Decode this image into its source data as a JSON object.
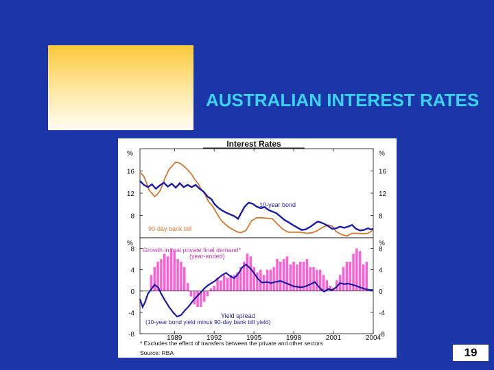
{
  "slide": {
    "title": "AUSTRALIAN INTEREST RATES",
    "number": "19",
    "colors": {
      "background": "#1a36a8",
      "title": "#39d3f0",
      "accent_top": "#ffc83a",
      "accent_bottom": "#fffdf3"
    }
  },
  "chart_data": [
    {
      "type": "line",
      "title": "Interest Rates",
      "ylabel_left": "%",
      "ylabel_right": "%",
      "ylim": [
        4,
        20
      ],
      "yticks": [
        8,
        12,
        16
      ],
      "xlim": [
        1986.4,
        2004
      ],
      "series": [
        {
          "name": "10-year bond",
          "color": "#1a1aa8",
          "points": [
            [
              1986.4,
              14.2
            ],
            [
              1986.7,
              13.5
            ],
            [
              1987.0,
              13.1
            ],
            [
              1987.3,
              13.6
            ],
            [
              1987.6,
              12.8
            ],
            [
              1987.9,
              13.4
            ],
            [
              1988.2,
              13.9
            ],
            [
              1988.5,
              13.2
            ],
            [
              1988.8,
              13.7
            ],
            [
              1989.1,
              13.0
            ],
            [
              1989.4,
              13.8
            ],
            [
              1989.7,
              13.1
            ],
            [
              1990.0,
              13.5
            ],
            [
              1990.3,
              13.1
            ],
            [
              1990.6,
              13.5
            ],
            [
              1990.9,
              12.8
            ],
            [
              1991.2,
              12.3
            ],
            [
              1991.5,
              11.4
            ],
            [
              1991.8,
              10.9
            ],
            [
              1992.0,
              10.1
            ],
            [
              1992.3,
              9.4
            ],
            [
              1992.6,
              8.9
            ],
            [
              1992.9,
              8.5
            ],
            [
              1993.2,
              8.2
            ],
            [
              1993.5,
              7.9
            ],
            [
              1993.8,
              7.4
            ],
            [
              1994.0,
              8.3
            ],
            [
              1994.3,
              9.6
            ],
            [
              1994.6,
              10.3
            ],
            [
              1994.9,
              10.1
            ],
            [
              1995.2,
              9.6
            ],
            [
              1995.5,
              9.3
            ],
            [
              1995.8,
              9.5
            ],
            [
              1996.1,
              9.0
            ],
            [
              1996.4,
              8.7
            ],
            [
              1996.7,
              8.4
            ],
            [
              1997.0,
              7.8
            ],
            [
              1997.3,
              7.2
            ],
            [
              1997.6,
              6.8
            ],
            [
              1998.0,
              6.2
            ],
            [
              1998.3,
              5.8
            ],
            [
              1998.6,
              5.4
            ],
            [
              1998.9,
              5.5
            ],
            [
              1999.2,
              5.9
            ],
            [
              1999.5,
              6.4
            ],
            [
              1999.8,
              6.9
            ],
            [
              2000.0,
              6.8
            ],
            [
              2000.3,
              6.5
            ],
            [
              2000.6,
              6.1
            ],
            [
              2000.9,
              5.6
            ],
            [
              2001.2,
              5.7
            ],
            [
              2001.5,
              6.0
            ],
            [
              2001.8,
              5.8
            ],
            [
              2002.1,
              6.0
            ],
            [
              2002.4,
              6.3
            ],
            [
              2002.7,
              5.6
            ],
            [
              2003.0,
              5.3
            ],
            [
              2003.3,
              5.4
            ],
            [
              2003.6,
              5.7
            ],
            [
              2003.8,
              5.5
            ],
            [
              2004.0,
              5.6
            ]
          ]
        },
        {
          "name": "90-day bank bill",
          "color": "#d8752a",
          "points": [
            [
              1986.4,
              15.8
            ],
            [
              1986.7,
              15.0
            ],
            [
              1986.9,
              13.8
            ],
            [
              1987.1,
              12.5
            ],
            [
              1987.3,
              12.0
            ],
            [
              1987.5,
              11.4
            ],
            [
              1987.7,
              11.8
            ],
            [
              1987.9,
              12.4
            ],
            [
              1988.1,
              13.5
            ],
            [
              1988.3,
              14.8
            ],
            [
              1988.6,
              16.3
            ],
            [
              1988.9,
              17.1
            ],
            [
              1989.1,
              17.6
            ],
            [
              1989.4,
              17.4
            ],
            [
              1989.7,
              16.9
            ],
            [
              1990.0,
              16.2
            ],
            [
              1990.3,
              15.4
            ],
            [
              1990.5,
              14.6
            ],
            [
              1990.8,
              13.7
            ],
            [
              1991.0,
              12.8
            ],
            [
              1991.3,
              11.8
            ],
            [
              1991.6,
              10.4
            ],
            [
              1991.9,
              9.6
            ],
            [
              1992.2,
              8.4
            ],
            [
              1992.5,
              7.2
            ],
            [
              1992.8,
              6.5
            ],
            [
              1993.1,
              5.9
            ],
            [
              1993.4,
              5.5
            ],
            [
              1993.7,
              5.1
            ],
            [
              1994.0,
              4.9
            ],
            [
              1994.4,
              5.3
            ],
            [
              1994.8,
              7.0
            ],
            [
              1995.2,
              7.6
            ],
            [
              1995.6,
              7.6
            ],
            [
              1996.0,
              7.5
            ],
            [
              1996.4,
              7.4
            ],
            [
              1996.8,
              6.4
            ],
            [
              1997.2,
              5.5
            ],
            [
              1997.6,
              5.0
            ],
            [
              1998.0,
              5.0
            ],
            [
              1998.5,
              5.0
            ],
            [
              1999.0,
              4.8
            ],
            [
              1999.4,
              4.9
            ],
            [
              1999.8,
              5.3
            ],
            [
              2000.2,
              5.9
            ],
            [
              2000.6,
              6.3
            ],
            [
              2000.9,
              6.1
            ],
            [
              2001.2,
              5.1
            ],
            [
              2001.6,
              4.6
            ],
            [
              2002.0,
              4.3
            ],
            [
              2002.4,
              4.8
            ],
            [
              2002.8,
              4.8
            ],
            [
              2003.2,
              4.7
            ],
            [
              2003.6,
              4.8
            ],
            [
              2004.0,
              5.4
            ]
          ]
        }
      ],
      "annotations": [
        "10-year bond",
        "90-day bank bill"
      ]
    },
    {
      "type": "bar",
      "title": "",
      "ylabel_left": "%",
      "ylabel_right": "%",
      "ylim": [
        -8,
        10
      ],
      "yticks": [
        -8,
        -4,
        0,
        4,
        8
      ],
      "xlim": [
        1986.4,
        2004
      ],
      "xticks": [
        "1989",
        "1992",
        "1995",
        "1998",
        "2001",
        "2004"
      ],
      "xtick_values": [
        1989,
        1992,
        1995,
        1998,
        2001,
        2004
      ],
      "bar_series": {
        "name": "Growth in real private final demand*",
        "sublabel": "(year-ended)",
        "color": "#ff5ed6",
        "x": [
          1987.25,
          1987.5,
          1987.75,
          1988.0,
          1988.25,
          1988.5,
          1988.75,
          1989.0,
          1989.25,
          1989.5,
          1989.75,
          1990.0,
          1990.25,
          1990.5,
          1990.75,
          1991.0,
          1991.25,
          1991.5,
          1991.75,
          1992.0,
          1992.25,
          1992.5,
          1992.75,
          1993.0,
          1993.25,
          1993.5,
          1993.75,
          1994.0,
          1994.25,
          1994.5,
          1994.75,
          1995.0,
          1995.25,
          1995.5,
          1995.75,
          1996.0,
          1996.25,
          1996.5,
          1996.75,
          1997.0,
          1997.25,
          1997.5,
          1997.75,
          1998.0,
          1998.25,
          1998.5,
          1998.75,
          1999.0,
          1999.25,
          1999.5,
          1999.75,
          2000.0,
          2000.25,
          2000.5,
          2000.75,
          2001.0,
          2001.25,
          2001.5,
          2001.75,
          2002.0,
          2002.25,
          2002.5,
          2002.75,
          2003.0,
          2003.25,
          2003.5
        ],
        "values": [
          3.0,
          4.5,
          5.5,
          6.0,
          7.0,
          6.5,
          8.0,
          7.5,
          6.0,
          5.5,
          4.5,
          1.5,
          -1.0,
          -2.5,
          -3.0,
          -3.0,
          -2.0,
          -1.0,
          0.5,
          1.0,
          2.5,
          2.0,
          3.0,
          2.5,
          3.0,
          3.0,
          3.5,
          4.5,
          5.5,
          7.0,
          6.5,
          4.5,
          3.5,
          4.0,
          3.0,
          4.0,
          4.0,
          4.5,
          6.0,
          5.5,
          6.0,
          6.5,
          5.0,
          5.5,
          5.0,
          5.5,
          5.5,
          6.0,
          4.5,
          4.5,
          4.0,
          4.0,
          3.0,
          2.0,
          1.0,
          0.5,
          2.0,
          3.0,
          4.5,
          5.5,
          5.5,
          7.0,
          8.0,
          7.5,
          5.0,
          5.5
        ]
      },
      "line_series": {
        "name": "Yield spread",
        "sublabel": "(10-year bond yield minus 90-day bank bill yield)",
        "color": "#1a1aa8",
        "points": [
          [
            1986.4,
            -1.5
          ],
          [
            1986.6,
            -3.0
          ],
          [
            1986.8,
            -2.0
          ],
          [
            1987.0,
            -0.5
          ],
          [
            1987.3,
            0.5
          ],
          [
            1987.5,
            1.2
          ],
          [
            1987.8,
            0.6
          ],
          [
            1988.0,
            -0.5
          ],
          [
            1988.3,
            -1.8
          ],
          [
            1988.6,
            -3.0
          ],
          [
            1988.9,
            -4.0
          ],
          [
            1989.2,
            -4.8
          ],
          [
            1989.5,
            -4.5
          ],
          [
            1989.8,
            -3.6
          ],
          [
            1990.1,
            -2.8
          ],
          [
            1990.4,
            -1.8
          ],
          [
            1990.7,
            -1.0
          ],
          [
            1991.0,
            -0.2
          ],
          [
            1991.3,
            0.6
          ],
          [
            1991.6,
            1.2
          ],
          [
            1992.0,
            1.8
          ],
          [
            1992.3,
            2.4
          ],
          [
            1992.6,
            3.0
          ],
          [
            1992.9,
            3.4
          ],
          [
            1993.2,
            2.8
          ],
          [
            1993.5,
            2.4
          ],
          [
            1993.8,
            3.2
          ],
          [
            1994.1,
            4.4
          ],
          [
            1994.4,
            5.0
          ],
          [
            1994.7,
            4.3
          ],
          [
            1995.0,
            3.4
          ],
          [
            1995.3,
            2.3
          ],
          [
            1995.6,
            1.6
          ],
          [
            1996.0,
            1.7
          ],
          [
            1996.3,
            1.5
          ],
          [
            1996.6,
            1.7
          ],
          [
            1997.0,
            1.9
          ],
          [
            1997.3,
            1.6
          ],
          [
            1997.6,
            1.3
          ],
          [
            1998.0,
            0.9
          ],
          [
            1998.3,
            0.8
          ],
          [
            1998.6,
            0.7
          ],
          [
            1998.9,
            0.9
          ],
          [
            1999.2,
            1.2
          ],
          [
            1999.6,
            1.7
          ],
          [
            2000.0,
            0.5
          ],
          [
            2000.3,
            -0.1
          ],
          [
            2000.6,
            0.4
          ],
          [
            2000.9,
            0.2
          ],
          [
            2001.2,
            0.7
          ],
          [
            2001.5,
            1.5
          ],
          [
            2001.8,
            1.3
          ],
          [
            2002.1,
            1.4
          ],
          [
            2002.4,
            1.2
          ],
          [
            2002.8,
            0.9
          ],
          [
            2003.1,
            0.6
          ],
          [
            2003.5,
            0.3
          ],
          [
            2003.8,
            0.2
          ],
          [
            2004.0,
            0.2
          ]
        ]
      },
      "footnotes": [
        "* Excludes the effect of transfers between the private and other sectors",
        "Source: RBA"
      ]
    }
  ]
}
